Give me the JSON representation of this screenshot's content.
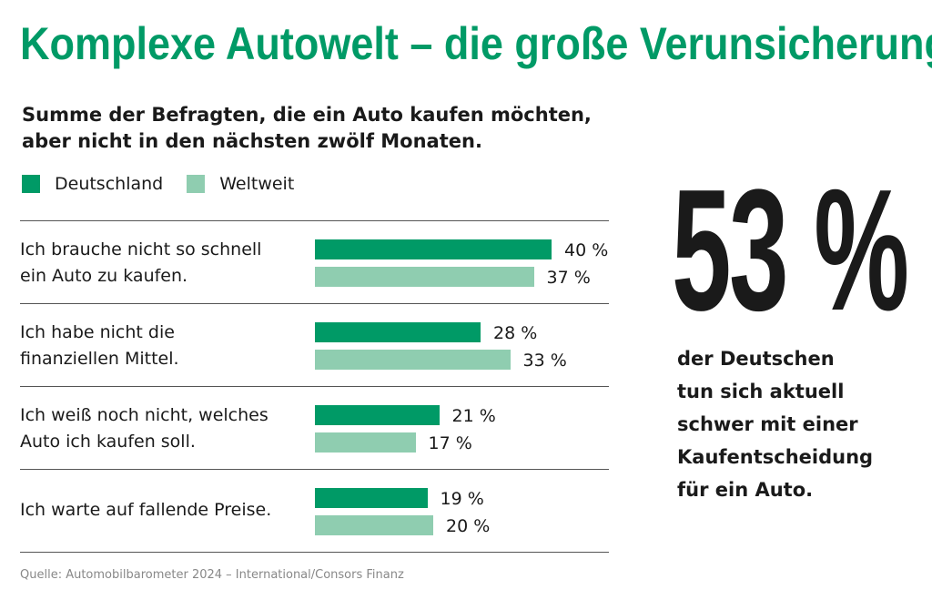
{
  "title": "Komplexe Autowelt – die große Verunsicherung",
  "subtitle_line1": "Summe der Befragten, die ein Auto kaufen möchten,",
  "subtitle_line2": "aber nicht in den nächsten zwölf Monaten.",
  "highlight": {
    "number": "53 %",
    "caption_lines": [
      "der Deutschen",
      "tun sich aktuell",
      "schwer mit einer",
      "Kaufentscheidung",
      "für ein Auto."
    ]
  },
  "source": "Quelle: Automobilbarometer 2024 – International/Consors Finanz",
  "colors": {
    "accent": "#009a66",
    "deutschland": "#009a66",
    "weltweit": "#8fcdb0",
    "text": "#1a1a1a"
  },
  "chart_data": {
    "type": "bar",
    "orientation": "horizontal",
    "legend": "top-left",
    "unit": "%",
    "categories": [
      [
        "Ich brauche nicht so schnell",
        "ein Auto zu kaufen."
      ],
      [
        "Ich habe nicht die",
        "finanziellen Mittel."
      ],
      [
        "Ich weiß noch nicht, welches",
        "Auto ich kaufen soll."
      ],
      [
        "Ich warte auf fallende Preise."
      ]
    ],
    "series": [
      {
        "name": "Deutschland",
        "values": [
          40,
          28,
          21,
          19
        ],
        "labels": [
          "40 %",
          "28 %",
          "21 %",
          "19 %"
        ]
      },
      {
        "name": "Weltweit",
        "values": [
          37,
          33,
          17,
          20
        ],
        "labels": [
          "37 %",
          "33 %",
          "17 %",
          "20 %"
        ]
      }
    ],
    "xlim": [
      0,
      40
    ]
  }
}
